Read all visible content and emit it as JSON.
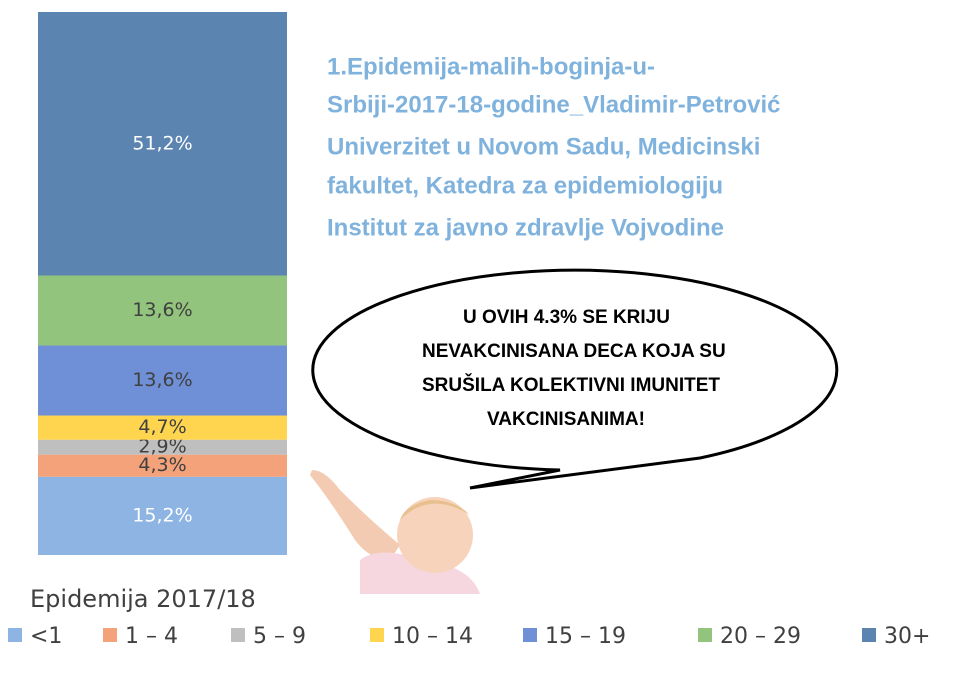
{
  "chart_data": {
    "type": "bar",
    "stacked": true,
    "categories": [
      "Epidemija 2017/18"
    ],
    "ylim": [
      0,
      105.5
    ],
    "series": [
      {
        "name": "<1",
        "color": "#8db4e2",
        "values": [
          15.2
        ],
        "value_labels": [
          "15,2%"
        ]
      },
      {
        "name": "1 – 4",
        "color": "#f4a27a",
        "values": [
          4.3
        ],
        "value_labels": [
          "4,3%"
        ]
      },
      {
        "name": "5 – 9",
        "color": "#bfbfbf",
        "values": [
          2.9
        ],
        "value_labels": [
          "2,9%"
        ]
      },
      {
        "name": "10 – 14",
        "color": "#ffd54f",
        "values": [
          4.7
        ],
        "value_labels": [
          "4,7%"
        ]
      },
      {
        "name": "15 – 19",
        "color": "#6f8fd6",
        "values": [
          13.6
        ],
        "value_labels": [
          "13,6%"
        ]
      },
      {
        "name": "20 – 29",
        "color": "#93c47d",
        "values": [
          13.6
        ],
        "value_labels": [
          "13,6%"
        ]
      },
      {
        "name": "30+",
        "color": "#5b84b1",
        "values": [
          51.2
        ],
        "value_labels": [
          "51,2%"
        ]
      }
    ],
    "source_lines": [
      "1.Epidemija-malih-boginja-u-",
      "Srbiji-2017-18-godine_Vladimir-Petrović",
      "Univerzitet u Novom Sadu, Medicinski",
      "fakultet, Katedra za epidemiologiju",
      "Institut za javno zdravlje Vojvodine"
    ],
    "callout_lines": [
      "U OVIH 4.3% SE KRIJU",
      "NEVAKCINISANA DECA KOJA SU",
      "SRUŠILA KOLEKTIVNI IMUNITET",
      "VAKCINISANIMA!"
    ]
  }
}
